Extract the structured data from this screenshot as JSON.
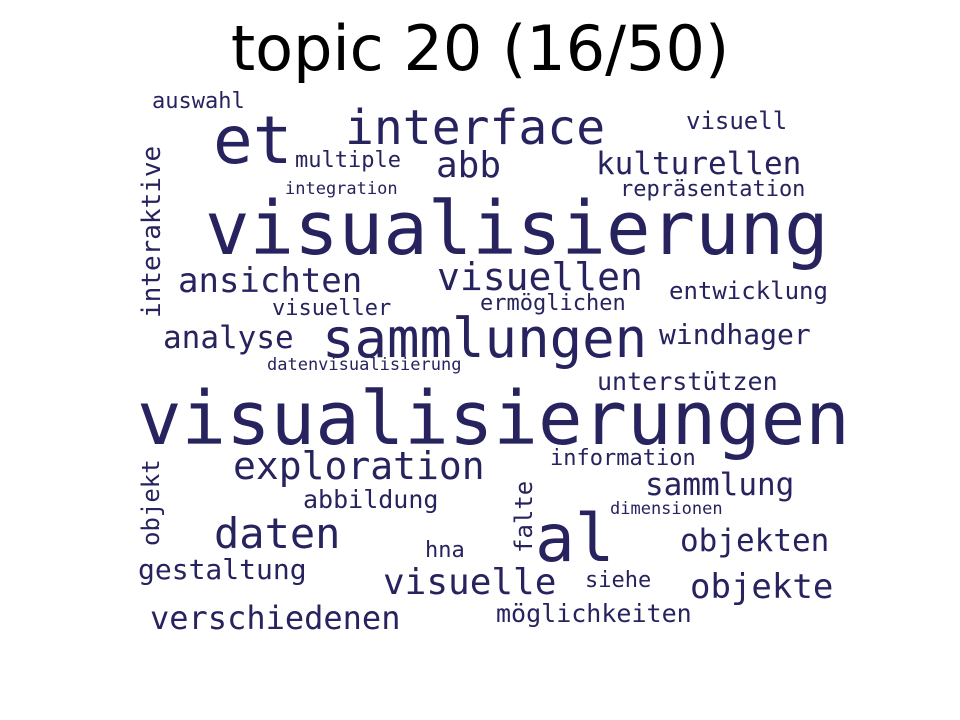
{
  "title": "topic 20 (16/50)",
  "colors": {
    "word": "#26235e",
    "background": "#ffffff",
    "title": "#000000"
  },
  "words": [
    {
      "text": "visualisierungen",
      "orientation": "horizontal"
    },
    {
      "text": "visualisierung",
      "orientation": "horizontal"
    },
    {
      "text": "sammlungen",
      "orientation": "horizontal"
    },
    {
      "text": "et",
      "orientation": "horizontal"
    },
    {
      "text": "al",
      "orientation": "horizontal"
    },
    {
      "text": "interface",
      "orientation": "horizontal"
    },
    {
      "text": "exploration",
      "orientation": "horizontal"
    },
    {
      "text": "daten",
      "orientation": "horizontal"
    },
    {
      "text": "visuellen",
      "orientation": "horizontal"
    },
    {
      "text": "visuelle",
      "orientation": "horizontal"
    },
    {
      "text": "ansichten",
      "orientation": "horizontal"
    },
    {
      "text": "kulturellen",
      "orientation": "horizontal"
    },
    {
      "text": "abb",
      "orientation": "horizontal"
    },
    {
      "text": "verschiedenen",
      "orientation": "horizontal"
    },
    {
      "text": "objekte",
      "orientation": "horizontal"
    },
    {
      "text": "analyse",
      "orientation": "horizontal"
    },
    {
      "text": "objekten",
      "orientation": "horizontal"
    },
    {
      "text": "sammlung",
      "orientation": "horizontal"
    },
    {
      "text": "windhager",
      "orientation": "horizontal"
    },
    {
      "text": "gestaltung",
      "orientation": "horizontal"
    },
    {
      "text": "unterstützen",
      "orientation": "horizontal"
    },
    {
      "text": "möglichkeiten",
      "orientation": "horizontal"
    },
    {
      "text": "abbildung",
      "orientation": "horizontal"
    },
    {
      "text": "entwicklung",
      "orientation": "horizontal"
    },
    {
      "text": "interaktive",
      "orientation": "vertical"
    },
    {
      "text": "multiple",
      "orientation": "horizontal"
    },
    {
      "text": "visuell",
      "orientation": "horizontal"
    },
    {
      "text": "repräsentation",
      "orientation": "horizontal"
    },
    {
      "text": "visueller",
      "orientation": "horizontal"
    },
    {
      "text": "ermöglichen",
      "orientation": "horizontal"
    },
    {
      "text": "information",
      "orientation": "horizontal"
    },
    {
      "text": "auswahl",
      "orientation": "horizontal"
    },
    {
      "text": "objekt",
      "orientation": "vertical"
    },
    {
      "text": "falte",
      "orientation": "vertical"
    },
    {
      "text": "hna",
      "orientation": "horizontal"
    },
    {
      "text": "siehe",
      "orientation": "horizontal"
    },
    {
      "text": "integration",
      "orientation": "horizontal"
    },
    {
      "text": "datenvisualisierung",
      "orientation": "horizontal"
    },
    {
      "text": "dimensionen",
      "orientation": "horizontal"
    }
  ]
}
